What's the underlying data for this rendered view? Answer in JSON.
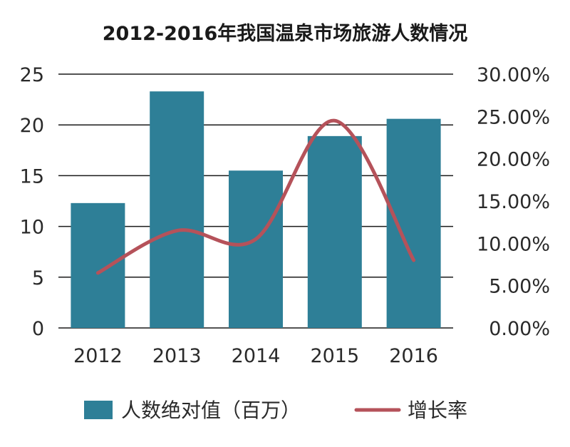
{
  "chart_data": {
    "type": "bar",
    "title": "2012-2016年我国温泉市场旅游人数情况",
    "categories": [
      "2012",
      "2013",
      "2014",
      "2015",
      "2016"
    ],
    "series": [
      {
        "name": "人数绝对值（百万）",
        "type": "bar",
        "axis": "left",
        "values": [
          12.3,
          23.3,
          15.5,
          18.9,
          20.6
        ],
        "color": "#2e7f97"
      },
      {
        "name": "增长率",
        "type": "line",
        "axis": "right",
        "values": [
          6.5,
          11.5,
          10.5,
          24.5,
          8.0
        ],
        "color": "#b5525a"
      }
    ],
    "y_left": {
      "range": [
        0,
        25
      ],
      "ticks": [
        "0",
        "5",
        "10",
        "15",
        "20",
        "25"
      ]
    },
    "y_right": {
      "range": [
        0,
        30
      ],
      "ticks": [
        "0.00%",
        "5.00%",
        "10.00%",
        "15.00%",
        "20.00%",
        "25.00%",
        "30.00%"
      ]
    },
    "grid": true,
    "legend_position": "bottom"
  }
}
